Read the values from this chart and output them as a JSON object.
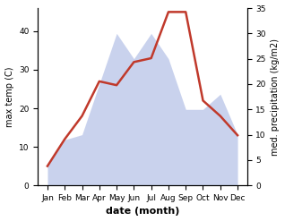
{
  "months": [
    "Jan",
    "Feb",
    "Mar",
    "Apr",
    "May",
    "Jun",
    "Jul",
    "Aug",
    "Sep",
    "Oct",
    "Nov",
    "Dec"
  ],
  "max_temp": [
    5,
    12,
    18,
    27,
    26,
    32,
    33,
    45,
    45,
    22,
    18,
    13
  ],
  "precipitation": [
    4,
    9,
    10,
    20,
    30,
    25,
    30,
    25,
    15,
    15,
    18,
    10
  ],
  "temp_color": "#c0392b",
  "precip_color": "#b8c4e8",
  "xlabel": "date (month)",
  "ylabel_left": "max temp (C)",
  "ylabel_right": "med. precipitation (kg/m2)",
  "ylim_left": [
    0,
    46
  ],
  "ylim_right": [
    0,
    35
  ],
  "yticks_left": [
    0,
    10,
    20,
    30,
    40
  ],
  "yticks_right": [
    0,
    5,
    10,
    15,
    20,
    25,
    30,
    35
  ],
  "background_color": "#ffffff"
}
